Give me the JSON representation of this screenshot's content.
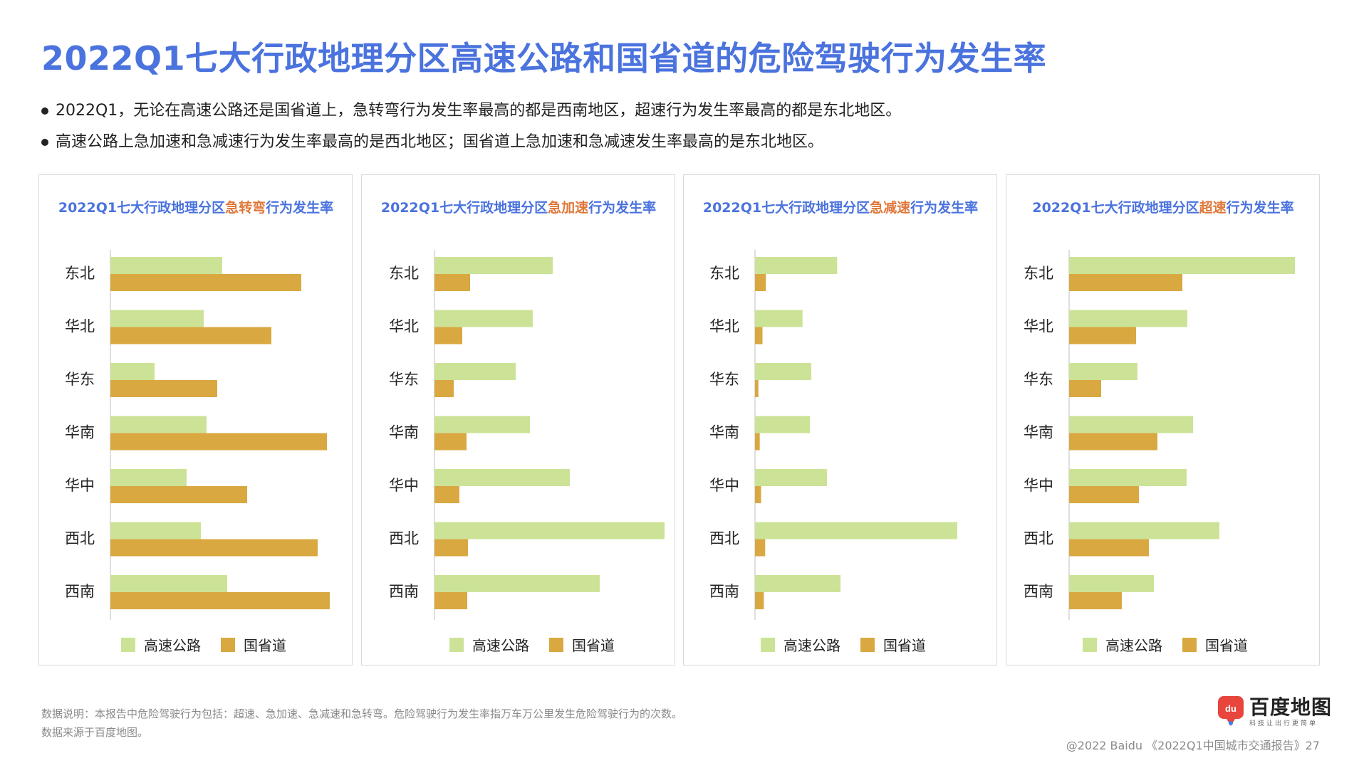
{
  "title": "2022Q1七大行政地理分区高速公路和国省道的危险驾驶行为发生率",
  "bullets": [
    "2022Q1，无论在高速公路还是国省道上，急转弯行为发生率最高的都是西南地区，超速行为发生率最高的都是东北地区。",
    "高速公路上急加速和急减速行为发生率最高的是西北地区；国省道上急加速和急减速发生率最高的是东北地区。"
  ],
  "colors": {
    "title": "#4b73de",
    "highlight": "#e0783a",
    "highway": "#cce397",
    "national": "#d9a840"
  },
  "chart_data": [
    {
      "type": "bar",
      "orientation": "horizontal",
      "title_prefix": "2022Q1七大行政地理分区",
      "title_highlight": "急转弯",
      "title_suffix": "行为发生率",
      "categories": [
        "东北",
        "华北",
        "华东",
        "华南",
        "华中",
        "西北",
        "西南"
      ],
      "series": [
        {
          "name": "高速公路",
          "values": [
            157,
            131,
            62,
            135,
            107,
            127,
            164
          ]
        },
        {
          "name": "国省道",
          "values": [
            268,
            226,
            150,
            304,
            192,
            291,
            308
          ]
        }
      ],
      "xlim": [
        0,
        320
      ],
      "legend": "bottom"
    },
    {
      "type": "bar",
      "orientation": "horizontal",
      "title_prefix": "2022Q1七大行政地理分区",
      "title_highlight": "急加速",
      "title_suffix": "行为发生率",
      "categories": [
        "东北",
        "华北",
        "华东",
        "华南",
        "华中",
        "西北",
        "西南"
      ],
      "series": [
        {
          "name": "高速公路",
          "values": [
            166,
            138,
            114,
            134,
            190,
            323,
            232
          ]
        },
        {
          "name": "国省道",
          "values": [
            50,
            39,
            27,
            45,
            35,
            47,
            46
          ]
        }
      ],
      "xlim": [
        0,
        330
      ],
      "legend": "bottom"
    },
    {
      "type": "bar",
      "orientation": "horizontal",
      "title_prefix": "2022Q1七大行政地理分区",
      "title_highlight": "急减速",
      "title_suffix": "行为发生率",
      "categories": [
        "东北",
        "华北",
        "华东",
        "华南",
        "华中",
        "西北",
        "西南"
      ],
      "series": [
        {
          "name": "高速公路",
          "values": [
            121,
            70,
            83,
            81,
            106,
            298,
            126
          ]
        },
        {
          "name": "国省道",
          "values": [
            16,
            11,
            5,
            7,
            9,
            15,
            13
          ]
        }
      ],
      "xlim": [
        0,
        320
      ],
      "legend": "bottom"
    },
    {
      "type": "bar",
      "orientation": "horizontal",
      "title_prefix": "2022Q1七大行政地理分区",
      "title_highlight": "超速",
      "title_suffix": "行为发生率",
      "categories": [
        "东北",
        "华北",
        "华东",
        "华南",
        "华中",
        "西北",
        "西南"
      ],
      "series": [
        {
          "name": "高速公路",
          "values": [
            317,
            166,
            96,
            174,
            165,
            211,
            119
          ]
        },
        {
          "name": "国省道",
          "values": [
            159,
            94,
            45,
            124,
            98,
            112,
            74
          ]
        }
      ],
      "xlim": [
        0,
        330
      ],
      "legend": "bottom"
    }
  ],
  "footer": {
    "note1": "数据说明：本报告中危险驾驶行为包括：超速、急加速、急减速和急转弯。危险驾驶行为发生率指万车万公里发生危险驾驶行为的次数。",
    "note2": "数据来源于百度地图。",
    "copyright": "@2022 Baidu 《2022Q1中国城市交通报告》27"
  },
  "logo": {
    "badge": "du",
    "name": "百度地图",
    "slogan": "科技让出行更简单"
  }
}
